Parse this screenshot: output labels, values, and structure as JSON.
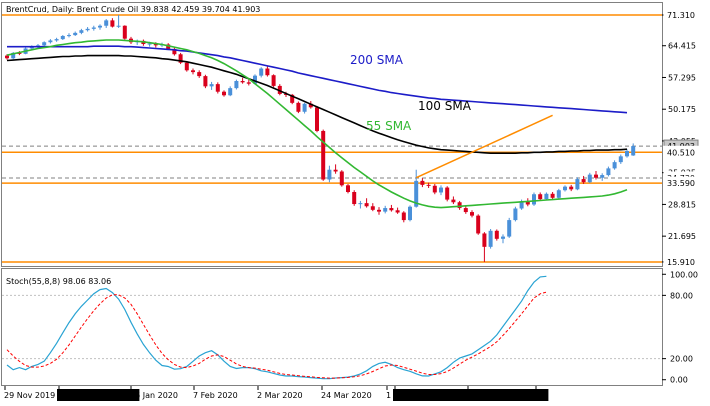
{
  "header": {
    "main": "BrentCrud, Daily:  Brent Crude Oil  39.838 42.459 39.704 41.903",
    "sub": "Stoch(55,8,8) 98.06 83.06"
  },
  "colors": {
    "bull_body": "#4a90d9",
    "bear_body": "#d9001c",
    "sma55": "#32b832",
    "sma100": "#000000",
    "sma200": "#1c1cc8",
    "level_line": "#ff8c00",
    "trend_line": "#ff8c00",
    "stoch_main": "#29a3d3",
    "stoch_signal": "#ff0000",
    "grid_dash": "#808080"
  },
  "labels": {
    "sma200": "200 SMA",
    "sma100": "100 SMA",
    "sma55": "55 SMA"
  },
  "price_axis": {
    "ticks": [
      "71.310",
      "64.415",
      "57.295",
      "50.175",
      "43.055",
      "35.935",
      "28.815",
      "21.695",
      "15.910"
    ],
    "highlighted": [
      "71.310",
      "41.903",
      "40.510",
      "34.730",
      "33.590",
      "15.910"
    ],
    "current_price": "41.903"
  },
  "stoch_axis": {
    "ticks": [
      "100.00",
      "80.00",
      "20.00",
      "0.00"
    ]
  },
  "time_axis": {
    "labels": [
      "29 Nov 2019",
      "2020.01.01 00:00",
      "16 Jan 2020",
      "7 Feb 2020",
      "2 Mar 2020",
      "24 Mar 2020",
      "1",
      "2020.05.01 00:00",
      "2020.05.26 00:00",
      "30"
    ],
    "highlighted": [
      "2020.01.01 00:00",
      "2020.05.01 00:00",
      "2020.05.26 00:00"
    ]
  },
  "chart_data": {
    "type": "candlestick",
    "instrument": "BrentCrud",
    "timeframe": "Daily",
    "ylim": [
      15.0,
      74.0
    ],
    "stoch_ylim": [
      -5,
      105
    ],
    "levels": [
      71.31,
      40.51,
      33.59,
      15.91
    ],
    "dashed_levels": [
      41.903,
      34.73
    ],
    "candles": [
      [
        62.2,
        62.5,
        61.3,
        61.6
      ],
      [
        61.6,
        63.0,
        61.4,
        62.8
      ],
      [
        62.8,
        63.2,
        62.3,
        62.6
      ],
      [
        62.6,
        64.0,
        62.5,
        63.8
      ],
      [
        63.8,
        64.5,
        63.5,
        64.2
      ],
      [
        64.2,
        64.8,
        63.8,
        64.5
      ],
      [
        64.5,
        65.4,
        64.3,
        65.2
      ],
      [
        65.2,
        65.9,
        64.9,
        65.6
      ],
      [
        65.6,
        66.2,
        65.3,
        65.9
      ],
      [
        65.9,
        66.8,
        65.7,
        66.6
      ],
      [
        66.6,
        67.2,
        66.3,
        66.8
      ],
      [
        66.8,
        67.6,
        66.6,
        67.3
      ],
      [
        67.3,
        68.2,
        67.0,
        67.9
      ],
      [
        67.9,
        68.6,
        67.6,
        68.2
      ],
      [
        68.2,
        68.9,
        67.8,
        68.5
      ],
      [
        68.5,
        69.2,
        68.0,
        68.9
      ],
      [
        68.9,
        70.4,
        68.4,
        70.1
      ],
      [
        70.1,
        70.6,
        68.5,
        68.7
      ],
      [
        68.7,
        71.3,
        68.4,
        68.9
      ],
      [
        68.9,
        69.0,
        65.8,
        66.0
      ],
      [
        66.0,
        66.4,
        64.8,
        65.2
      ],
      [
        65.2,
        65.8,
        64.6,
        65.5
      ],
      [
        65.5,
        65.8,
        64.4,
        64.8
      ],
      [
        64.8,
        65.3,
        64.2,
        64.9
      ],
      [
        64.9,
        65.2,
        64.0,
        64.5
      ],
      [
        64.5,
        65.1,
        64.1,
        64.7
      ],
      [
        64.7,
        65.0,
        63.5,
        63.7
      ],
      [
        63.7,
        64.0,
        62.2,
        62.5
      ],
      [
        62.5,
        62.8,
        60.3,
        60.6
      ],
      [
        60.6,
        60.9,
        58.6,
        58.9
      ],
      [
        58.9,
        59.3,
        58.0,
        58.5
      ],
      [
        58.5,
        58.9,
        57.2,
        57.6
      ],
      [
        57.6,
        57.9,
        54.9,
        55.3
      ],
      [
        55.3,
        56.3,
        54.5,
        55.8
      ],
      [
        55.8,
        56.2,
        53.7,
        54.1
      ],
      [
        54.1,
        54.4,
        53.0,
        53.3
      ],
      [
        53.3,
        55.3,
        53.1,
        54.9
      ],
      [
        54.9,
        56.8,
        54.6,
        56.5
      ],
      [
        56.5,
        57.2,
        55.9,
        56.2
      ],
      [
        56.2,
        57.1,
        55.5,
        55.9
      ],
      [
        55.9,
        58.0,
        55.7,
        57.7
      ],
      [
        57.7,
        59.6,
        57.3,
        59.3
      ],
      [
        59.3,
        59.8,
        57.5,
        57.8
      ],
      [
        57.8,
        58.0,
        55.1,
        55.4
      ],
      [
        55.4,
        55.8,
        53.3,
        53.6
      ],
      [
        53.6,
        54.1,
        52.9,
        53.4
      ],
      [
        53.4,
        53.6,
        51.3,
        51.6
      ],
      [
        51.6,
        51.9,
        49.3,
        49.6
      ],
      [
        49.6,
        51.6,
        49.2,
        51.4
      ],
      [
        51.4,
        52.0,
        50.3,
        50.6
      ],
      [
        50.6,
        50.9,
        45.0,
        45.3
      ],
      [
        45.3,
        45.6,
        34.1,
        34.4
      ],
      [
        34.4,
        37.5,
        33.8,
        36.6
      ],
      [
        36.6,
        37.8,
        35.7,
        36.2
      ],
      [
        36.2,
        36.5,
        32.8,
        33.1
      ],
      [
        33.1,
        33.4,
        31.3,
        31.6
      ],
      [
        31.6,
        32.0,
        28.5,
        28.9
      ],
      [
        28.9,
        29.6,
        27.9,
        29.1
      ],
      [
        29.1,
        30.2,
        28.1,
        28.4
      ],
      [
        28.4,
        29.1,
        27.3,
        27.6
      ],
      [
        27.6,
        28.2,
        26.5,
        27.2
      ],
      [
        27.2,
        28.5,
        26.8,
        28.0
      ],
      [
        28.0,
        28.7,
        27.2,
        27.5
      ],
      [
        27.5,
        28.1,
        26.7,
        27.0
      ],
      [
        27.0,
        27.3,
        24.8,
        25.3
      ],
      [
        25.3,
        28.6,
        25.0,
        28.3
      ],
      [
        28.3,
        36.6,
        28.1,
        34.1
      ],
      [
        34.1,
        34.7,
        32.7,
        33.2
      ],
      [
        33.2,
        33.7,
        32.5,
        33.0
      ],
      [
        33.0,
        33.4,
        31.1,
        31.5
      ],
      [
        31.5,
        33.1,
        30.9,
        32.6
      ],
      [
        32.6,
        32.9,
        29.5,
        29.9
      ],
      [
        29.9,
        30.6,
        28.9,
        29.3
      ],
      [
        29.3,
        29.6,
        27.6,
        28.0
      ],
      [
        28.0,
        28.4,
        26.7,
        27.1
      ],
      [
        27.1,
        27.5,
        25.9,
        26.3
      ],
      [
        26.3,
        26.6,
        22.0,
        22.3
      ],
      [
        22.3,
        22.6,
        15.9,
        19.3
      ],
      [
        19.3,
        23.3,
        18.9,
        22.9
      ],
      [
        22.9,
        23.2,
        20.7,
        21.1
      ],
      [
        21.1,
        22.1,
        20.1,
        21.6
      ],
      [
        21.6,
        25.8,
        21.3,
        25.3
      ],
      [
        25.3,
        28.3,
        25.0,
        27.9
      ],
      [
        27.9,
        29.9,
        27.6,
        29.5
      ],
      [
        29.5,
        30.2,
        28.4,
        28.8
      ],
      [
        28.8,
        31.5,
        28.5,
        31.1
      ],
      [
        31.1,
        31.5,
        29.6,
        30.0
      ],
      [
        30.0,
        31.5,
        29.7,
        31.2
      ],
      [
        31.2,
        31.6,
        29.9,
        30.3
      ],
      [
        30.3,
        32.3,
        30.0,
        32.0
      ],
      [
        32.0,
        33.1,
        31.7,
        32.8
      ],
      [
        32.8,
        33.2,
        31.8,
        32.2
      ],
      [
        32.2,
        34.9,
        32.0,
        34.5
      ],
      [
        34.5,
        35.2,
        33.4,
        33.8
      ],
      [
        33.8,
        35.9,
        33.6,
        35.5
      ],
      [
        35.5,
        36.3,
        34.4,
        34.8
      ],
      [
        34.8,
        35.8,
        34.1,
        35.4
      ],
      [
        35.4,
        37.3,
        35.1,
        36.9
      ],
      [
        36.9,
        38.7,
        36.6,
        38.3
      ],
      [
        38.3,
        40.0,
        37.9,
        39.6
      ],
      [
        39.6,
        41.2,
        39.3,
        40.8
      ],
      [
        39.8,
        42.5,
        39.7,
        41.9
      ]
    ],
    "sma55": [
      62.3,
      62.6,
      62.9,
      63.2,
      63.5,
      63.8,
      64.0,
      64.2,
      64.5,
      64.7,
      64.9,
      65.1,
      65.2,
      65.4,
      65.5,
      65.6,
      65.7,
      65.7,
      65.7,
      65.6,
      65.5,
      65.4,
      65.3,
      65.1,
      64.9,
      64.7,
      64.4,
      64.1,
      63.8,
      63.5,
      63.1,
      62.7,
      62.2,
      61.7,
      61.1,
      60.4,
      59.6,
      58.8,
      57.9,
      57.0,
      55.9,
      54.8,
      53.7,
      52.5,
      51.3,
      50.1,
      48.9,
      47.7,
      46.5,
      45.3,
      44.0,
      42.8,
      41.6,
      40.4,
      39.3,
      38.2,
      37.1,
      36.1,
      35.1,
      34.1,
      33.2,
      32.4,
      31.6,
      30.9,
      30.2,
      29.6,
      29.1,
      28.7,
      28.4,
      28.2,
      28.1,
      28.2,
      28.3,
      28.4,
      28.5,
      28.6,
      28.7,
      28.8,
      28.9,
      29.0,
      29.1,
      29.2,
      29.3,
      29.4,
      29.5,
      29.6,
      29.7,
      29.8,
      29.9,
      30.0,
      30.1,
      30.2,
      30.3,
      30.4,
      30.5,
      30.6,
      30.7,
      30.9,
      31.2,
      31.6,
      32.1
    ],
    "sma100": [
      61.1,
      61.2,
      61.3,
      61.4,
      61.5,
      61.6,
      61.7,
      61.8,
      61.9,
      62.0,
      62.0,
      62.1,
      62.1,
      62.2,
      62.2,
      62.2,
      62.2,
      62.2,
      62.2,
      62.1,
      62.1,
      62.0,
      61.9,
      61.8,
      61.7,
      61.5,
      61.4,
      61.2,
      61.0,
      60.8,
      60.5,
      60.2,
      59.9,
      59.6,
      59.2,
      58.8,
      58.4,
      58.0,
      57.5,
      57.0,
      56.5,
      56.0,
      55.5,
      54.9,
      54.3,
      53.7,
      53.1,
      52.5,
      51.9,
      51.3,
      50.7,
      50.1,
      49.5,
      48.9,
      48.3,
      47.7,
      47.1,
      46.5,
      45.9,
      45.3,
      44.8,
      44.3,
      43.8,
      43.3,
      42.9,
      42.5,
      42.1,
      41.8,
      41.5,
      41.3,
      41.1,
      41.0,
      40.9,
      40.8,
      40.7,
      40.6,
      40.5,
      40.4,
      40.3,
      40.3,
      40.3,
      40.3,
      40.3,
      40.4,
      40.4,
      40.5,
      40.5,
      40.6,
      40.6,
      40.7,
      40.7,
      40.8,
      40.8,
      40.9,
      40.9,
      41.0,
      41.0,
      41.0,
      41.1,
      41.1,
      41.2
    ],
    "sma200": [
      64.2,
      64.2,
      64.2,
      64.2,
      64.2,
      64.2,
      64.2,
      64.2,
      64.2,
      64.2,
      64.2,
      64.2,
      64.2,
      64.2,
      64.3,
      64.3,
      64.3,
      64.3,
      64.3,
      64.2,
      64.2,
      64.1,
      64.0,
      63.9,
      63.8,
      63.7,
      63.6,
      63.5,
      63.3,
      63.2,
      63.0,
      62.8,
      62.6,
      62.4,
      62.2,
      61.9,
      61.7,
      61.4,
      61.1,
      60.8,
      60.5,
      60.2,
      59.9,
      59.6,
      59.3,
      59.0,
      58.7,
      58.3,
      58.0,
      57.7,
      57.4,
      57.1,
      56.8,
      56.5,
      56.2,
      55.9,
      55.6,
      55.3,
      55.0,
      54.7,
      54.4,
      54.2,
      53.9,
      53.7,
      53.5,
      53.3,
      53.1,
      52.9,
      52.7,
      52.6,
      52.4,
      52.3,
      52.2,
      52.1,
      52.0,
      51.9,
      51.8,
      51.7,
      51.6,
      51.5,
      51.4,
      51.3,
      51.2,
      51.1,
      51.0,
      50.9,
      50.8,
      50.7,
      50.6,
      50.5,
      50.4,
      50.3,
      50.2,
      50.1,
      50.0,
      49.9,
      49.8,
      49.7,
      49.6,
      49.5,
      49.4
    ],
    "trend_line": {
      "x": [
        66,
        88
      ],
      "y": [
        34.8,
        48.8
      ]
    },
    "stoch_main": [
      14.0,
      9.5,
      11.5,
      9.5,
      12.6,
      14.5,
      17.6,
      25.6,
      34.5,
      44.5,
      54.2,
      62.5,
      69.6,
      75.6,
      81.6,
      85.5,
      86.5,
      82.6,
      76.5,
      66.6,
      54.5,
      43.5,
      33.5,
      25.5,
      18.5,
      13.5,
      12.5,
      10.0,
      10.5,
      12.5,
      17.5,
      22.5,
      25.6,
      27.5,
      23.5,
      17.6,
      12.5,
      10.6,
      11.5,
      11.5,
      10.5,
      8.5,
      7.5,
      6.0,
      4.5,
      3.5,
      3.5,
      3.0,
      2.6,
      2.0,
      1.5,
      1.0,
      1.0,
      1.6,
      2.0,
      2.5,
      3.5,
      5.5,
      8.5,
      12.6,
      15.5,
      16.5,
      14.5,
      11.5,
      9.5,
      8.0,
      5.6,
      3.6,
      3.5,
      5.5,
      7.5,
      11.5,
      16.5,
      20.5,
      22.5,
      24.5,
      28.5,
      32.5,
      36.5,
      42.5,
      50.6,
      58.5,
      66.5,
      74.6,
      84.5,
      92.5,
      97.5,
      98.06
    ],
    "stoch_signal": [
      28.5,
      22.5,
      17.5,
      13.5,
      12.0,
      12.0,
      13.0,
      15.5,
      19.5,
      25.5,
      33.0,
      41.5,
      50.0,
      58.0,
      65.5,
      72.0,
      77.5,
      80.5,
      80.5,
      77.5,
      71.5,
      62.5,
      52.5,
      42.5,
      33.0,
      25.0,
      19.0,
      14.5,
      12.0,
      11.5,
      13.0,
      15.5,
      19.5,
      22.5,
      23.5,
      22.0,
      18.5,
      15.0,
      12.5,
      11.5,
      11.0,
      10.0,
      9.0,
      7.5,
      6.0,
      5.0,
      4.5,
      3.8,
      3.2,
      2.8,
      2.2,
      1.8,
      1.5,
      1.5,
      1.8,
      2.2,
      2.8,
      3.8,
      5.5,
      7.8,
      10.5,
      13.0,
      14.0,
      13.5,
      11.8,
      10.0,
      8.2,
      6.2,
      5.0,
      5.0,
      5.8,
      7.8,
      11.0,
      14.8,
      18.5,
      21.5,
      24.5,
      28.0,
      31.5,
      36.0,
      42.0,
      48.5,
      55.5,
      62.5,
      70.0,
      77.5,
      81.5,
      83.06
    ]
  }
}
